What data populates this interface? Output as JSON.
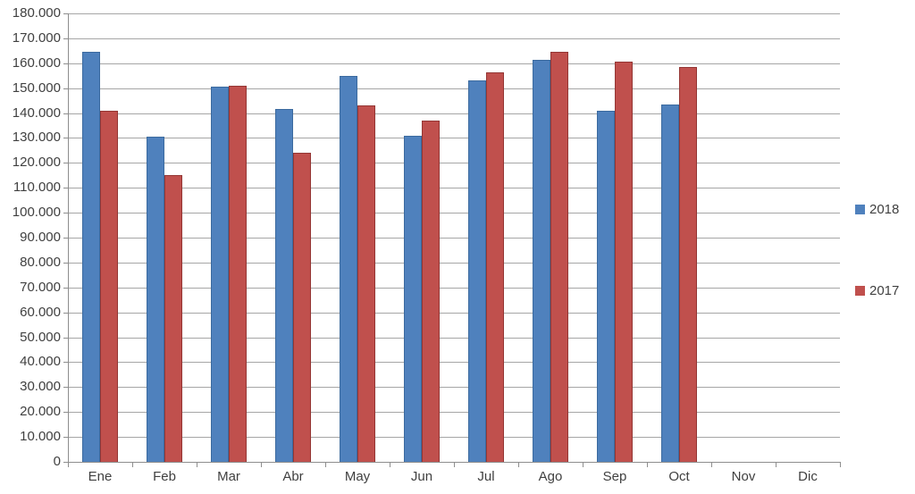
{
  "chart_data": {
    "type": "bar",
    "title": "",
    "xlabel": "",
    "ylabel": "",
    "categories": [
      "Ene",
      "Feb",
      "Mar",
      "Abr",
      "May",
      "Jun",
      "Jul",
      "Ago",
      "Sep",
      "Oct",
      "Nov",
      "Dic"
    ],
    "series": [
      {
        "name": "2018",
        "color": "#4F81BD",
        "border_color": "#3B6A9F",
        "values": [
          164500,
          130500,
          150500,
          141500,
          155000,
          131000,
          153000,
          161500,
          141000,
          143500,
          0,
          0
        ]
      },
      {
        "name": "2017",
        "color": "#C0504D",
        "border_color": "#943634",
        "values": [
          141000,
          115000,
          151000,
          124000,
          143000,
          137000,
          156500,
          164500,
          160500,
          158500,
          0,
          0
        ]
      }
    ],
    "ylim": [
      0,
      180000
    ],
    "ytick_step": 10000,
    "ytick_labels": [
      "0",
      "10.000",
      "20.000",
      "30.000",
      "40.000",
      "50.000",
      "60.000",
      "70.000",
      "80.000",
      "90.000",
      "100.000",
      "110.000",
      "120.000",
      "130.000",
      "140.000",
      "150.000",
      "160.000",
      "170.000",
      "180.000"
    ],
    "grid": true,
    "legend_position": "right",
    "legend_entries": [
      "2018",
      "2017"
    ]
  },
  "colors": {
    "gridline": "#A6A6A6",
    "axis": "#8E8E8E",
    "text": "#404040",
    "background": "#FFFFFF"
  }
}
